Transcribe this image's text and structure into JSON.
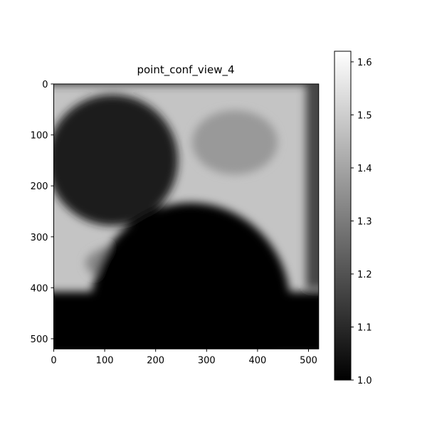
{
  "chart_data": {
    "type": "heatmap",
    "title": "point_conf_view_4",
    "xlim": [
      0,
      520
    ],
    "ylim": [
      0,
      520
    ],
    "xticks": [
      0,
      100,
      200,
      300,
      400,
      500
    ],
    "yticks": [
      0,
      100,
      200,
      300,
      400,
      500
    ],
    "colormap": [
      "#000000",
      "#ffffff"
    ],
    "colorbar": {
      "lim": [
        1.0,
        1.62
      ],
      "ticks": [
        {
          "value": 1,
          "label": "1.0"
        },
        1.1,
        1.2,
        1.3,
        1.4,
        1.5,
        1.6
      ]
    }
  }
}
